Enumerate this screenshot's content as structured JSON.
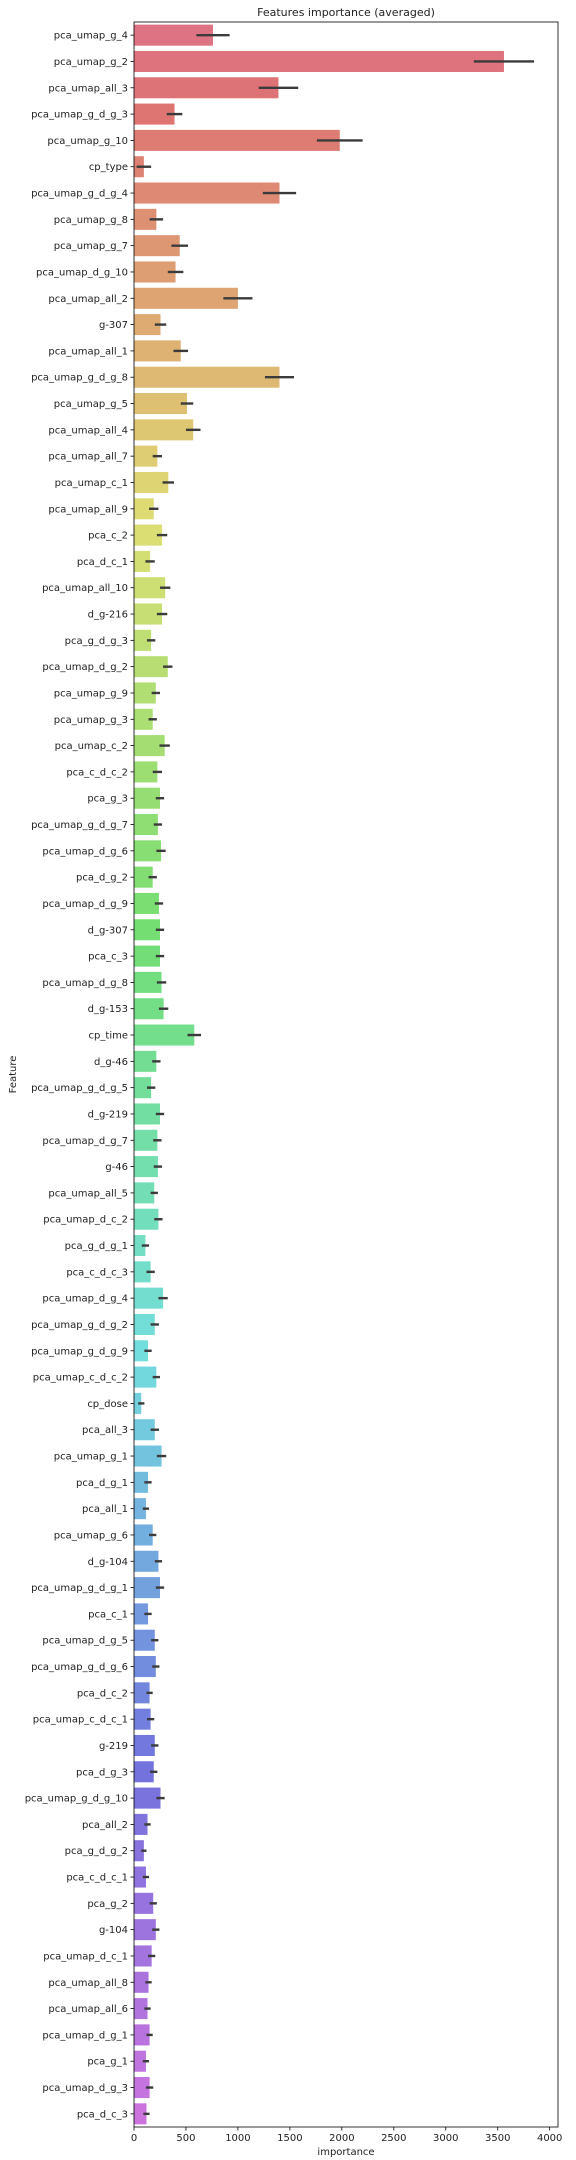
{
  "chart_data": {
    "type": "bar",
    "orientation": "horizontal",
    "title": "Features importance (averaged)",
    "xlabel": "importance",
    "ylabel": "Feature",
    "xlim": [
      0,
      4080
    ],
    "xticks": [
      0,
      500,
      1000,
      1500,
      2000,
      2500,
      3000,
      3500,
      4000
    ],
    "grid": false,
    "legend": "none",
    "categories": [
      "pca_umap_g_4",
      "pca_umap_g_2",
      "pca_umap_all_3",
      "pca_umap_g_d_g_3",
      "pca_umap_g_10",
      "cp_type",
      "pca_umap_g_d_g_4",
      "pca_umap_g_8",
      "pca_umap_g_7",
      "pca_umap_d_g_10",
      "pca_umap_all_2",
      "g-307",
      "pca_umap_all_1",
      "pca_umap_g_d_g_8",
      "pca_umap_g_5",
      "pca_umap_all_4",
      "pca_umap_all_7",
      "pca_umap_c_1",
      "pca_umap_all_9",
      "pca_c_2",
      "pca_d_c_1",
      "pca_umap_all_10",
      "d_g-216",
      "pca_g_d_g_3",
      "pca_umap_d_g_2",
      "pca_umap_g_9",
      "pca_umap_g_3",
      "pca_umap_c_2",
      "pca_c_d_c_2",
      "pca_g_3",
      "pca_umap_g_d_g_7",
      "pca_umap_d_g_6",
      "pca_d_g_2",
      "pca_umap_d_g_9",
      "d_g-307",
      "pca_c_3",
      "pca_umap_d_g_8",
      "d_g-153",
      "cp_time",
      "d_g-46",
      "pca_umap_g_d_g_5",
      "d_g-219",
      "pca_umap_d_g_7",
      "g-46",
      "pca_umap_all_5",
      "pca_umap_d_c_2",
      "pca_g_d_g_1",
      "pca_c_d_c_3",
      "pca_umap_d_g_4",
      "pca_umap_g_d_g_2",
      "pca_umap_g_d_g_9",
      "pca_umap_c_d_c_2",
      "cp_dose",
      "pca_all_3",
      "pca_umap_g_1",
      "pca_d_g_1",
      "pca_all_1",
      "pca_umap_g_6",
      "d_g-104",
      "pca_umap_g_d_g_1",
      "pca_c_1",
      "pca_umap_d_g_5",
      "pca_umap_g_d_g_6",
      "pca_d_c_2",
      "pca_umap_c_d_c_1",
      "g-219",
      "pca_d_g_3",
      "pca_umap_g_d_g_10",
      "pca_all_2",
      "pca_g_d_g_2",
      "pca_c_d_c_1",
      "pca_g_2",
      "g-104",
      "pca_umap_d_c_1",
      "pca_umap_all_8",
      "pca_umap_all_6",
      "pca_umap_d_g_1",
      "pca_g_1",
      "pca_umap_d_g_3",
      "pca_d_c_3"
    ],
    "values": [
      760,
      3560,
      1390,
      390,
      1980,
      95,
      1400,
      215,
      440,
      400,
      1000,
      255,
      450,
      1400,
      510,
      570,
      225,
      330,
      190,
      270,
      155,
      300,
      270,
      165,
      325,
      210,
      180,
      295,
      225,
      250,
      230,
      260,
      180,
      240,
      250,
      250,
      265,
      285,
      580,
      215,
      165,
      250,
      225,
      230,
      195,
      235,
      110,
      160,
      280,
      200,
      135,
      215,
      70,
      200,
      265,
      135,
      115,
      180,
      235,
      250,
      135,
      200,
      210,
      150,
      160,
      200,
      190,
      255,
      130,
      95,
      115,
      185,
      210,
      170,
      140,
      130,
      150,
      115,
      150,
      120
    ],
    "error": [
      160,
      290,
      190,
      75,
      220,
      70,
      160,
      65,
      80,
      75,
      140,
      55,
      70,
      140,
      60,
      70,
      45,
      55,
      45,
      50,
      45,
      50,
      50,
      40,
      45,
      40,
      40,
      50,
      45,
      40,
      40,
      45,
      40,
      40,
      40,
      40,
      45,
      45,
      65,
      40,
      40,
      40,
      40,
      40,
      35,
      40,
      35,
      40,
      45,
      40,
      35,
      35,
      30,
      40,
      45,
      35,
      30,
      35,
      35,
      40,
      35,
      35,
      35,
      30,
      35,
      35,
      35,
      40,
      30,
      25,
      30,
      35,
      35,
      35,
      30,
      30,
      30,
      30,
      35,
      30
    ]
  }
}
